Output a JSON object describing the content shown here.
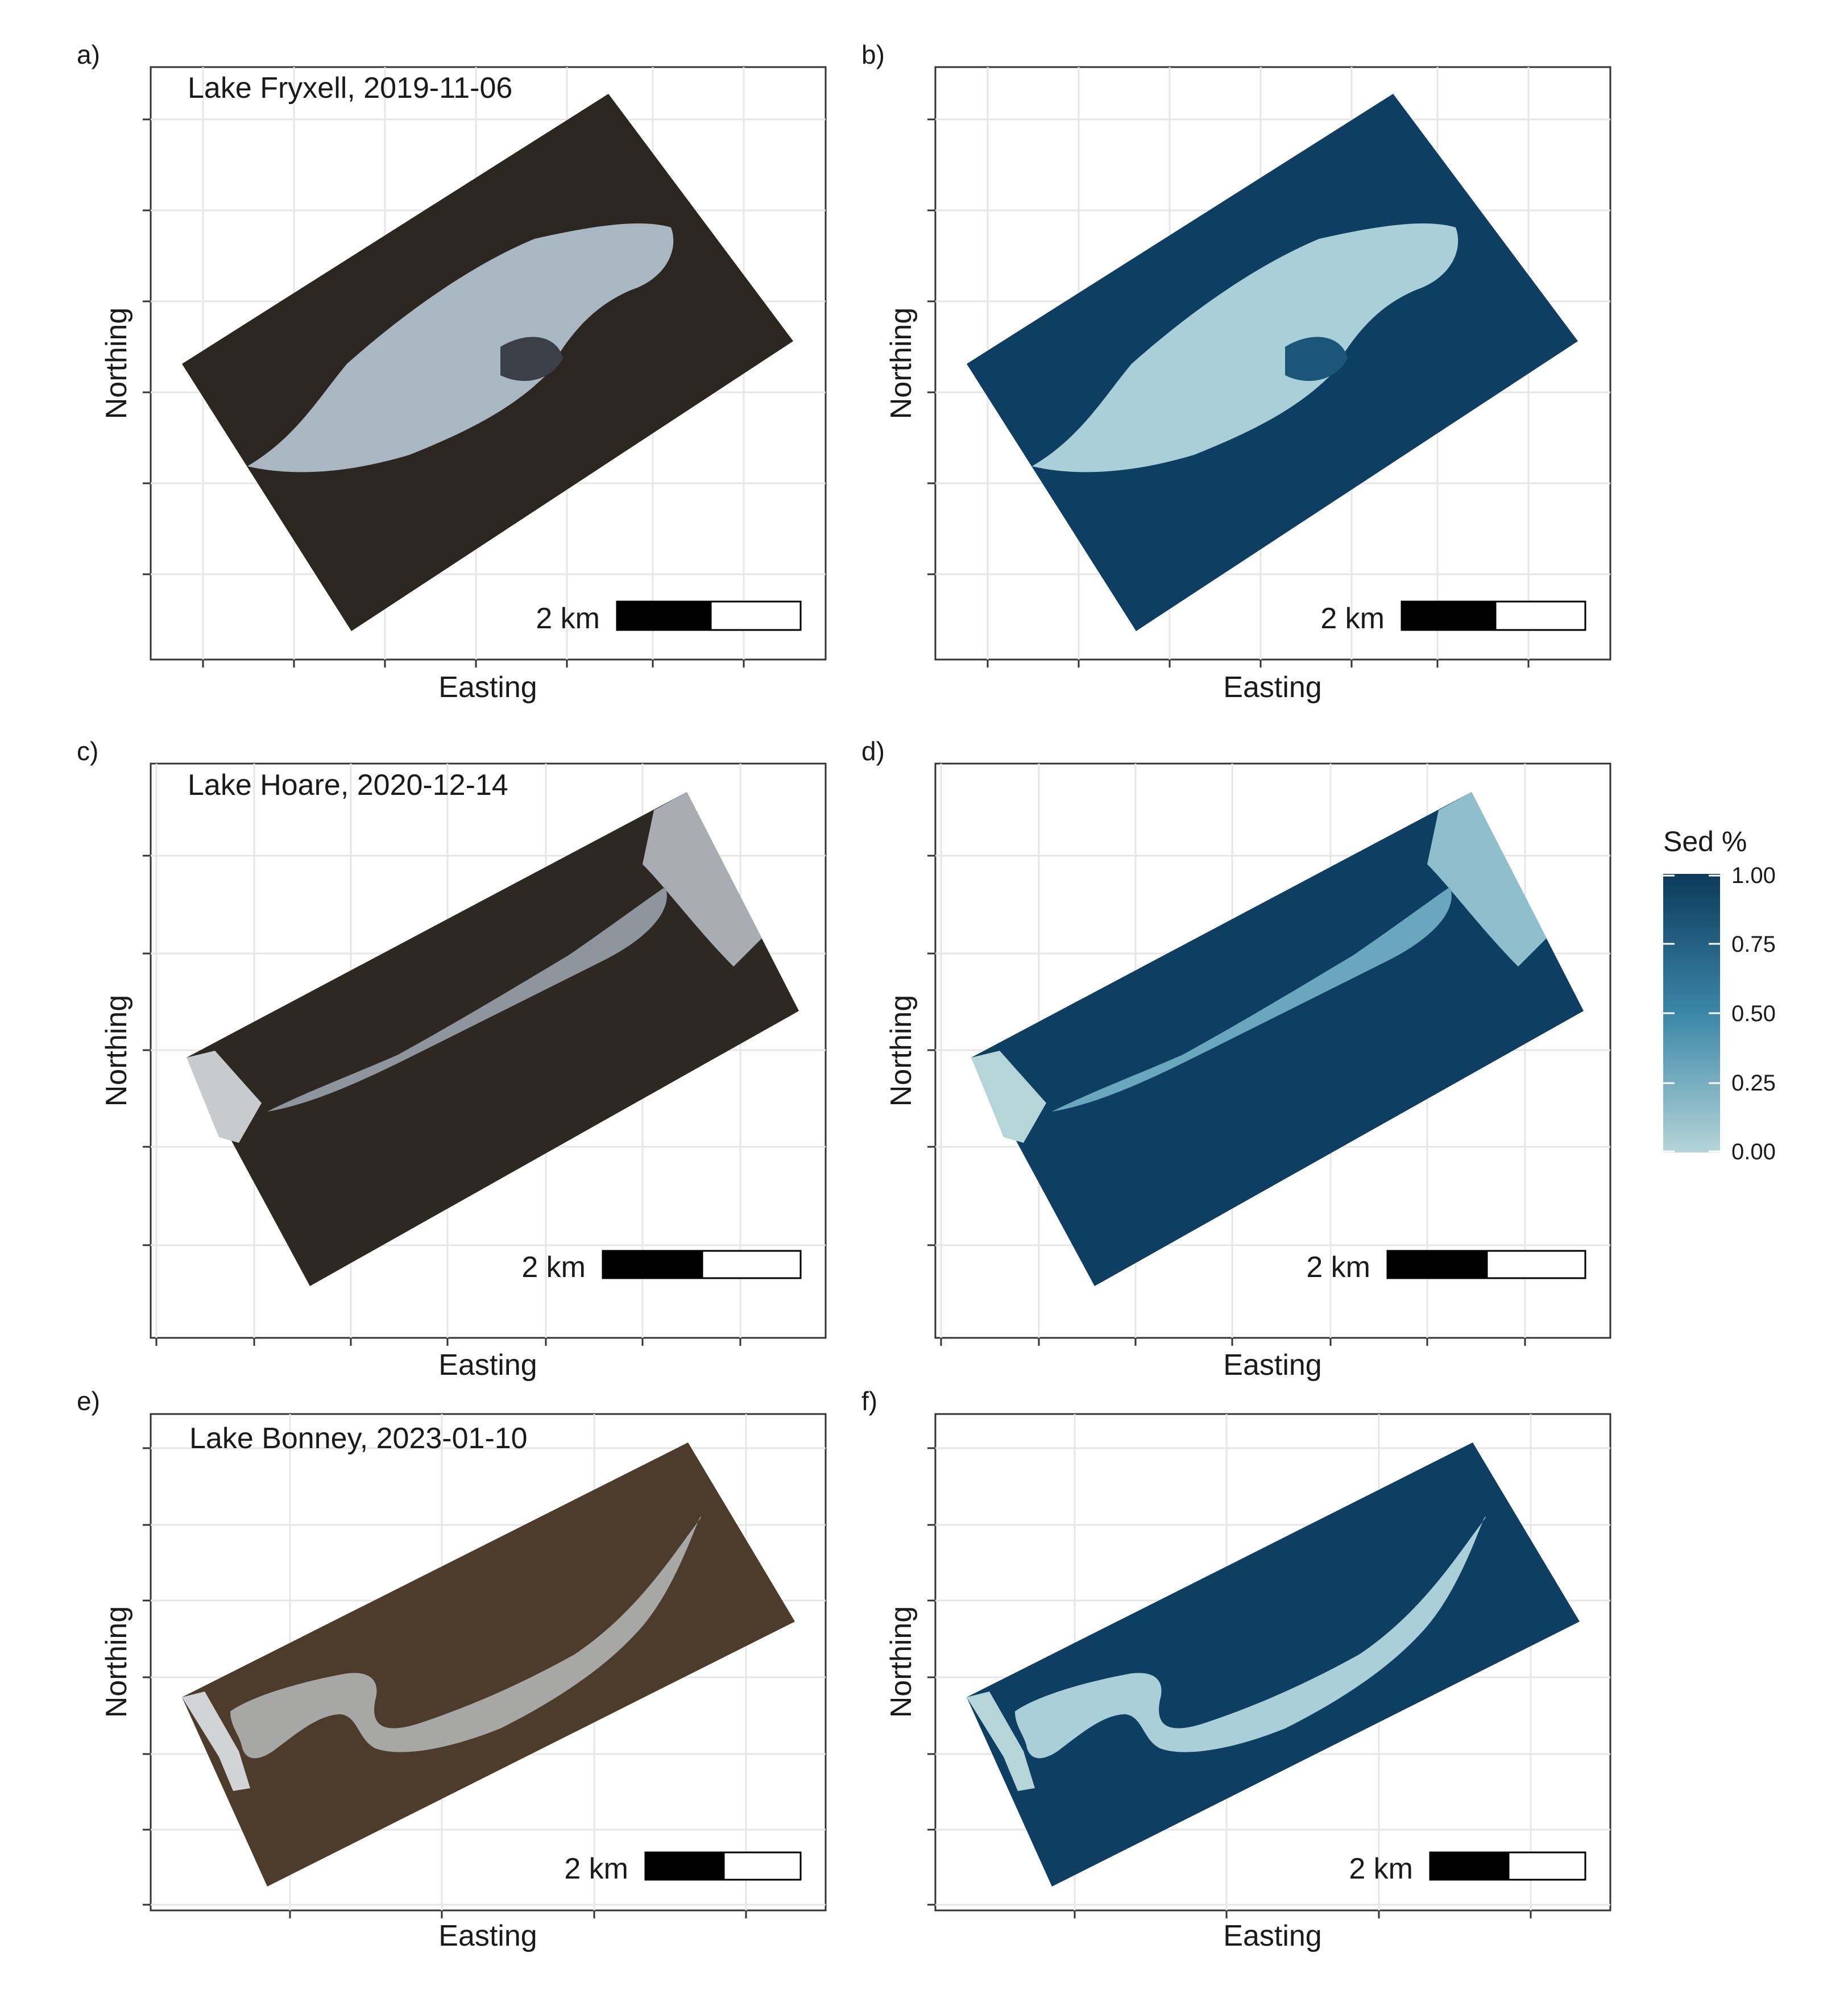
{
  "axes": {
    "x_title": "Easting",
    "y_title": "Northing"
  },
  "panels": [
    {
      "letter": "a)",
      "scene": "Lake Fryxell, 2019-11-06",
      "type": "rgb",
      "scale_label": "2 km"
    },
    {
      "letter": "b)",
      "scene": "",
      "type": "sed",
      "scale_label": "2 km"
    },
    {
      "letter": "c)",
      "scene": "Lake Hoare, 2020-12-14",
      "type": "rgb",
      "scale_label": "2 km"
    },
    {
      "letter": "d)",
      "scene": "",
      "type": "sed",
      "scale_label": "2 km"
    },
    {
      "letter": "e)",
      "scene": "Lake Bonney, 2023-01-10",
      "type": "rgb",
      "scale_label": "2 km"
    },
    {
      "letter": "f)",
      "scene": "",
      "type": "sed",
      "scale_label": "2 km"
    }
  ],
  "legend": {
    "title": "Sed %",
    "ticks": [
      "1.00",
      "0.75",
      "0.50",
      "0.25",
      "0.00"
    ],
    "color_high": "#0d3a5c",
    "color_mid": "#3b86a8",
    "color_low": "#b5d5d8"
  },
  "colors": {
    "terrain_fryxell": "#2b2620",
    "terrain_hoare": "#2e2822",
    "terrain_bonney": "#4d3c2b",
    "lake_ice": "#a9b7c3",
    "sed_background": "#0e3f63",
    "sed_lake": "#a9d0d8"
  }
}
